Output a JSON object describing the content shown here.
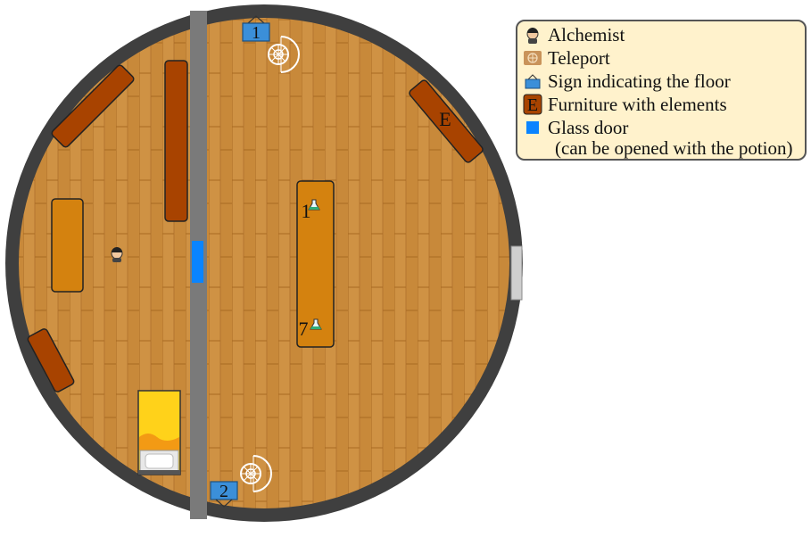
{
  "floor_signs": [
    {
      "label": "1"
    },
    {
      "label": "2"
    }
  ],
  "table_numbers": [
    {
      "label": "1"
    },
    {
      "label": "7"
    }
  ],
  "furniture_element_label": "E",
  "legend": {
    "items": [
      {
        "icon": "alchemist-icon",
        "label": "Alchemist"
      },
      {
        "icon": "teleport-icon",
        "label": "Teleport"
      },
      {
        "icon": "floor-sign-icon",
        "label": "Sign indicating the floor"
      },
      {
        "icon": "furniture-element-icon",
        "label": "Furniture with elements",
        "icon_letter": "E"
      },
      {
        "icon": "glass-door-icon",
        "label": "Glass door"
      }
    ],
    "note": "(can be opened with the potion)"
  },
  "colors": {
    "wall": "#3f3f3f",
    "floor": "#c8893a",
    "corridor": "#7a7a7a",
    "glass_door": "#0a84ff",
    "dark_furniture": "#a84300",
    "light_furniture": "#d4820f",
    "bed": "#ffd21a",
    "legend_bg": "#fff2cc"
  }
}
